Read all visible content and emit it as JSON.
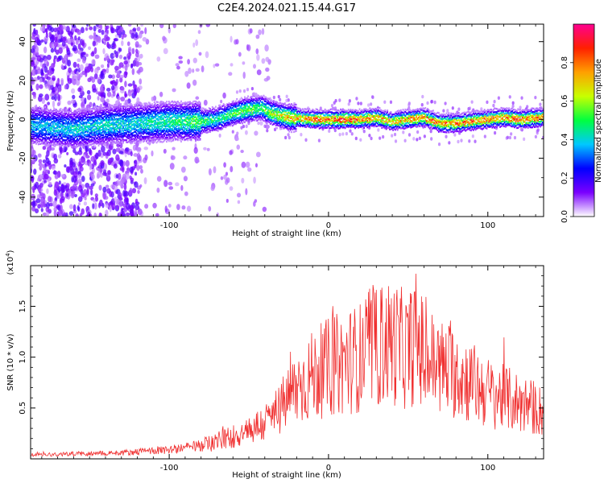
{
  "title": "C2E4.2024.021.15.44.G17",
  "colors": {
    "snr_line": "#f03030",
    "colormap": [
      "#ffffff",
      "#7a00ff",
      "#0000ff",
      "#00c8ff",
      "#00ff40",
      "#c8ff00",
      "#ffa000",
      "#ff2000",
      "#ff0090"
    ]
  },
  "chart_data": [
    {
      "type": "heatmap",
      "xlabel": "Height of straight line (km)",
      "ylabel": "Frequency (Hz)",
      "xlim": [
        -187,
        135
      ],
      "ylim": [
        -50,
        49
      ],
      "xticks": [
        -100,
        0,
        100
      ],
      "xtick_labels": [
        "-100",
        "0",
        "100"
      ],
      "yticks": [
        -40,
        -20,
        0,
        20,
        40
      ],
      "ytick_labels": [
        "-40",
        "-20",
        "0",
        "20",
        "40"
      ],
      "grid": false,
      "colorbar": {
        "label": "Normalized spectral amplitude",
        "range": [
          0,
          1
        ],
        "ticks": [
          0.0,
          0.2,
          0.4,
          0.6,
          0.8
        ],
        "tick_labels": [
          "0.0",
          "0.2",
          "0.4",
          "0.6",
          "0.8"
        ],
        "placement": "right"
      },
      "ridge": {
        "x": [
          -187,
          -160,
          -140,
          -120,
          -100,
          -80,
          -70,
          -60,
          -50,
          -42,
          -35,
          -25,
          -10,
          0,
          10,
          20,
          30,
          40,
          50,
          60,
          70,
          80,
          90,
          100,
          110,
          120,
          135
        ],
        "y": [
          -3,
          -5,
          -3,
          -2,
          -1,
          -1,
          0,
          3,
          5,
          6,
          3,
          1,
          0,
          0,
          0,
          0,
          1,
          -1,
          0,
          1,
          -2,
          -2,
          -1,
          0,
          1,
          0,
          1
        ],
        "peak_amplitude": [
          0.4,
          0.42,
          0.45,
          0.45,
          0.5,
          0.55,
          0.5,
          0.55,
          0.6,
          0.55,
          0.65,
          0.75,
          0.85,
          0.9,
          0.9,
          0.85,
          0.8,
          0.75,
          0.8,
          0.85,
          0.85,
          0.85,
          0.85,
          0.85,
          0.85,
          0.85,
          0.85
        ]
      }
    },
    {
      "type": "line",
      "xlabel": "Height of straight line (km)",
      "ylabel": "SNR (10 * v/v)",
      "y_multiplier": "(x10",
      "y_multiplier_exp": "4",
      "y_multiplier_close": ")",
      "xlim": [
        -187,
        135
      ],
      "ylim": [
        0,
        1.9
      ],
      "xticks": [
        -100,
        0,
        100
      ],
      "xtick_labels": [
        "-100",
        "0",
        "100"
      ],
      "yticks": [
        0.5,
        1.0,
        1.5
      ],
      "ytick_labels": [
        "0.5",
        "1.0",
        "1.5"
      ],
      "grid": false,
      "series": [
        {
          "x": [
            -187,
            -160,
            -130,
            -100,
            -80,
            -60,
            -40,
            -30,
            -20,
            -10,
            0,
            10,
            20,
            30,
            40,
            50,
            55,
            60,
            70,
            80,
            90,
            100,
            110,
            120,
            130,
            135
          ],
          "y": [
            0.04,
            0.05,
            0.06,
            0.09,
            0.13,
            0.22,
            0.35,
            0.5,
            0.7,
            0.82,
            0.9,
            0.95,
            1.0,
            1.1,
            1.15,
            1.05,
            1.2,
            1.0,
            0.9,
            0.85,
            0.75,
            0.65,
            0.6,
            0.55,
            0.5,
            0.45
          ]
        }
      ]
    }
  ]
}
